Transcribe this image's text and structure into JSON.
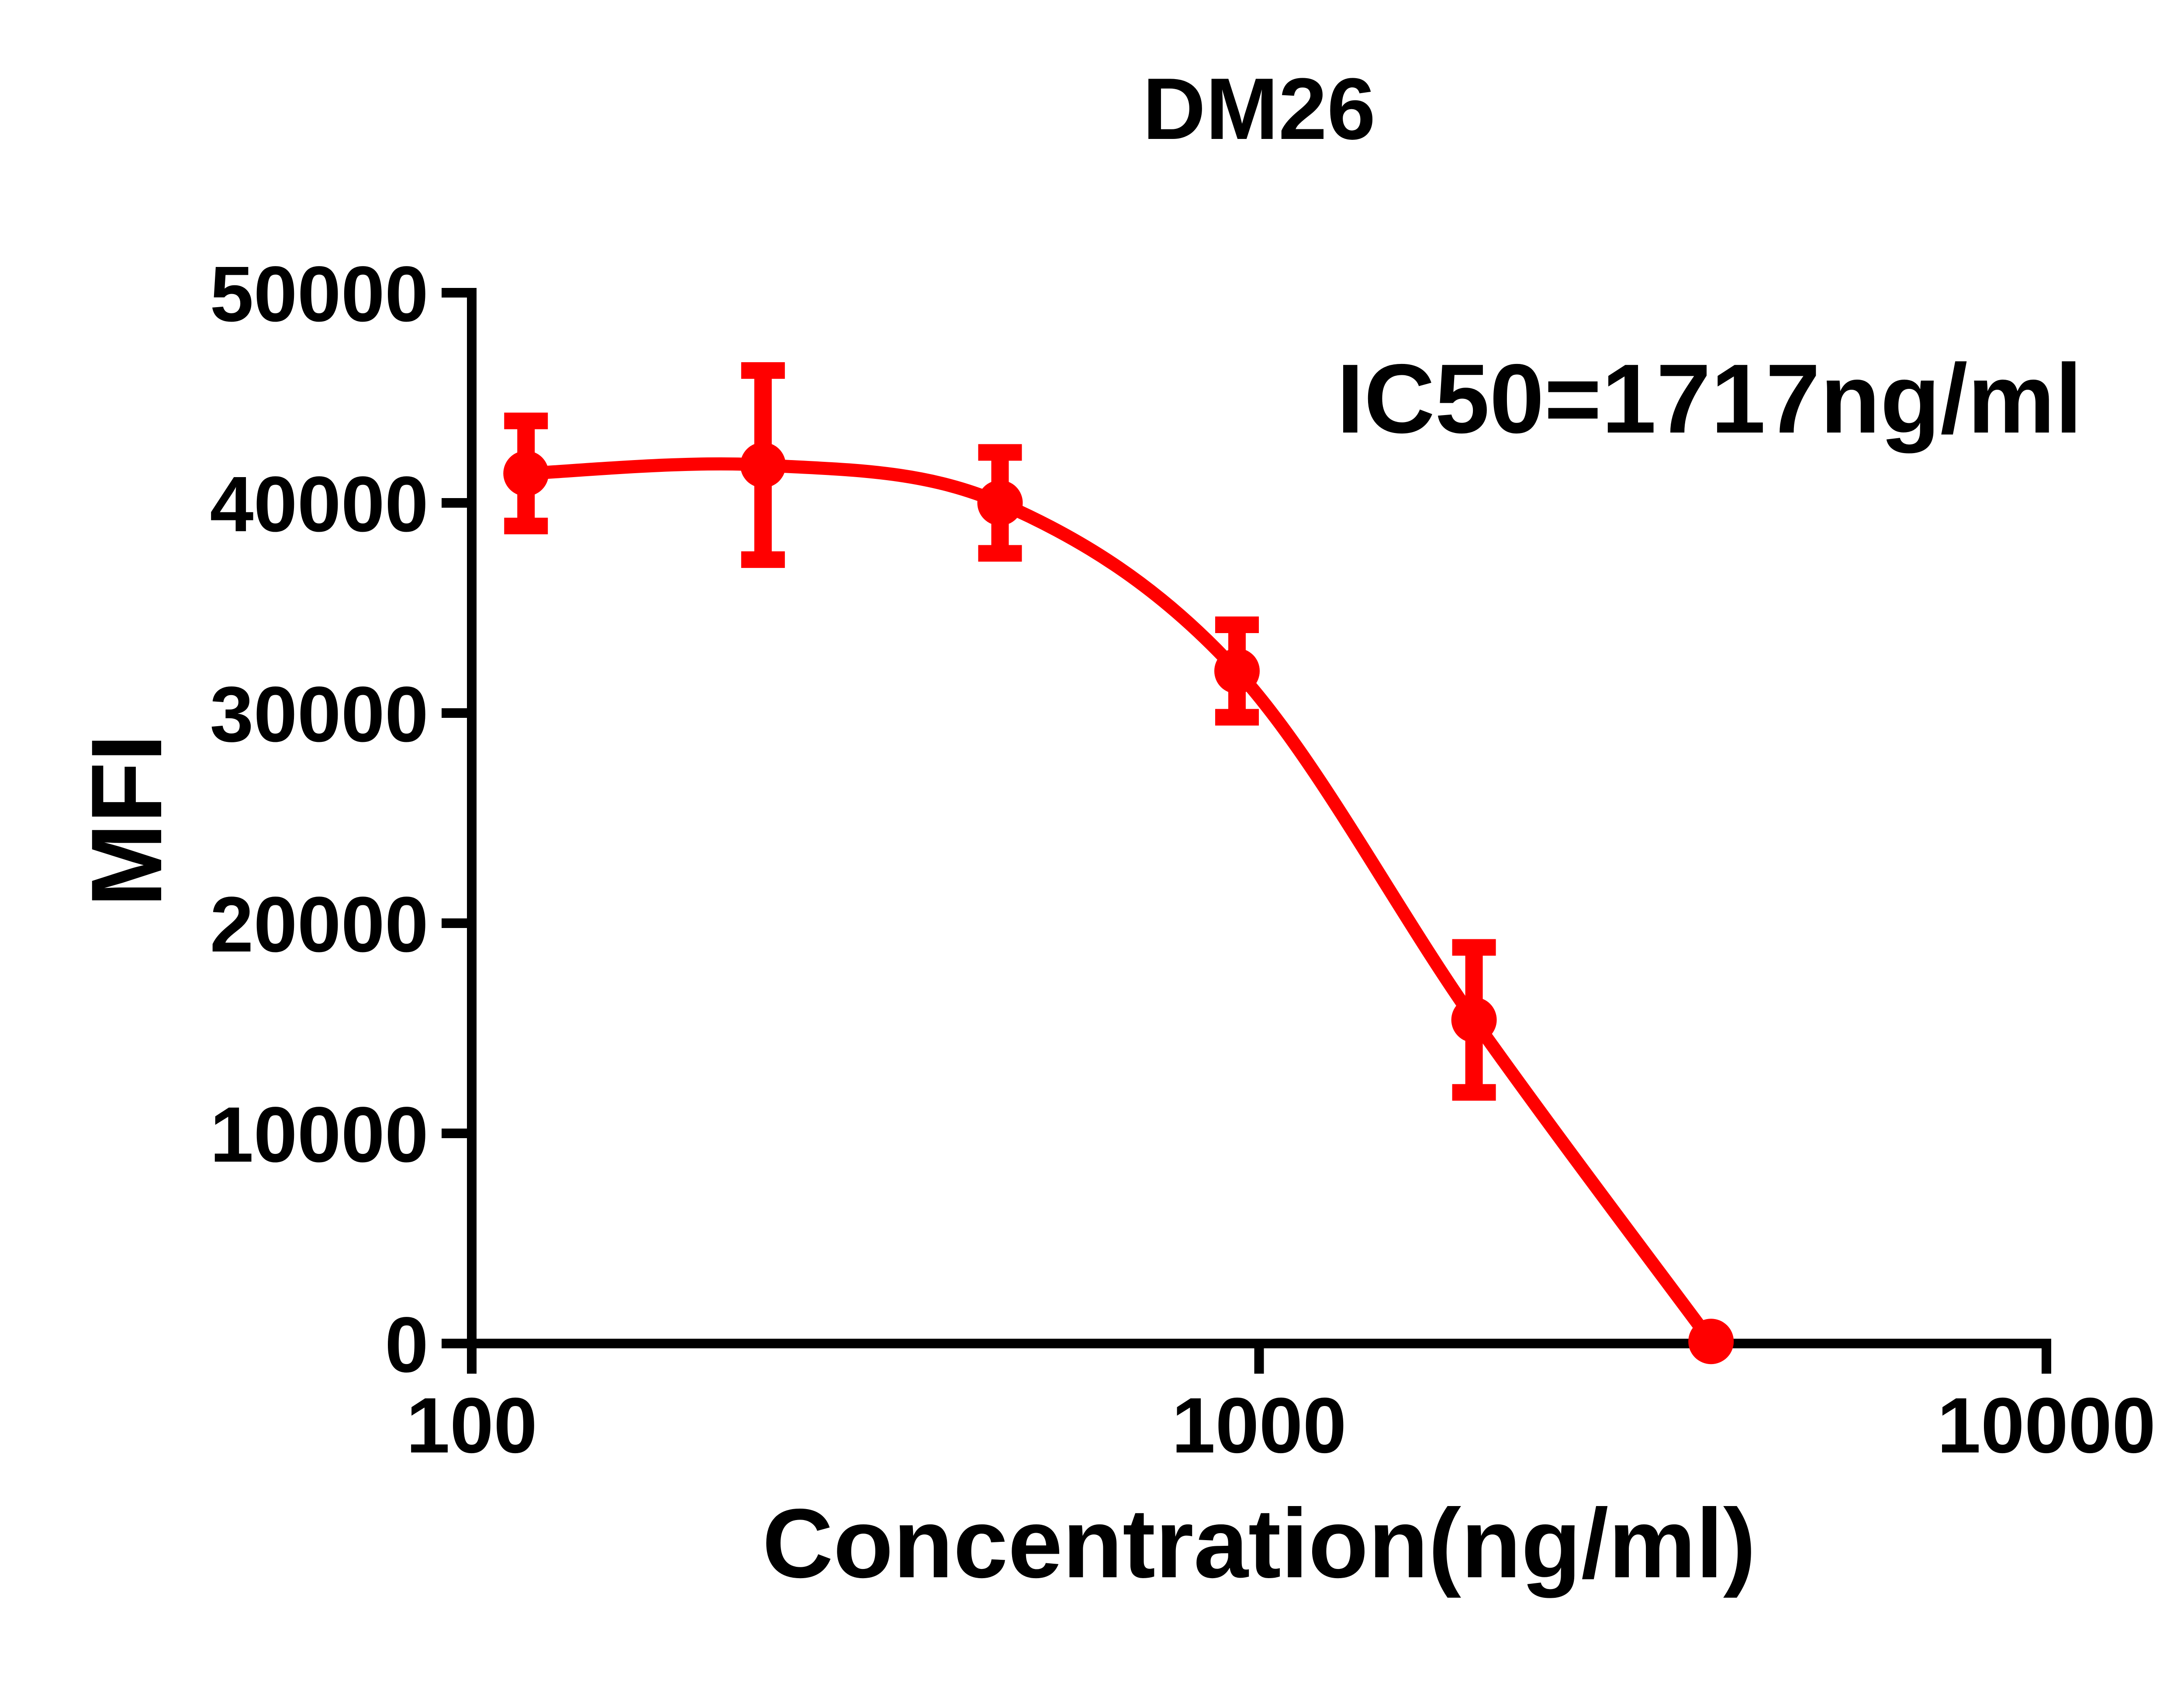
{
  "chart_data": {
    "type": "scatter",
    "title": "DM26",
    "annotation": "IC50=1717ng/ml",
    "xlabel": "Concentration(ng/ml)",
    "ylabel": "MFI",
    "x_scale": "log",
    "x_range": [
      100,
      10000
    ],
    "y_range": [
      0,
      50000
    ],
    "x_ticks": [
      100,
      1000,
      10000
    ],
    "y_ticks": [
      0,
      10000,
      20000,
      30000,
      40000,
      50000
    ],
    "grid": false,
    "legend_position": "none",
    "axis_color": "#000000",
    "background_color": "#ffffff",
    "series": [
      {
        "name": "DM26",
        "color": "#FF0000",
        "marker": "circle",
        "line": "smooth sigmoid through points",
        "ic50_label_value": 1717,
        "points": [
          {
            "x": 117.2,
            "y": 41400,
            "sd": 2500
          },
          {
            "x": 234.4,
            "y": 41800,
            "sd": 4500
          },
          {
            "x": 468.8,
            "y": 40000,
            "sd": 2400
          },
          {
            "x": 937.5,
            "y": 32000,
            "sd": 2200
          },
          {
            "x": 1875,
            "y": 15400,
            "sd": 3450
          },
          {
            "x": 3750,
            "y": 100,
            "sd": 0
          }
        ]
      }
    ]
  }
}
